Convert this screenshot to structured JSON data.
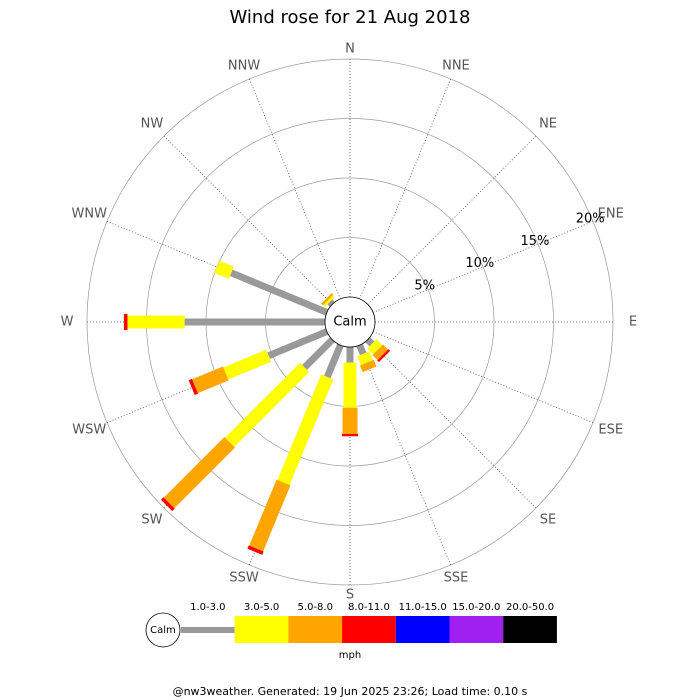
{
  "chart_data": {
    "type": "windrose",
    "title": "Wind rose for 21 Aug 2018",
    "directions": [
      "N",
      "NNE",
      "NE",
      "ENE",
      "E",
      "ESE",
      "SE",
      "SSE",
      "S",
      "SSW",
      "SW",
      "WSW",
      "W",
      "WNW",
      "NW",
      "NNW"
    ],
    "calm_label": "Calm",
    "rlim": [
      0,
      20
    ],
    "rticks": [
      {
        "value": 5,
        "label": "5%"
      },
      {
        "value": 10,
        "label": "10%"
      },
      {
        "value": 15,
        "label": "15%"
      },
      {
        "value": 20,
        "label": "20%"
      }
    ],
    "grid": true,
    "unit": "mph",
    "series": [
      {
        "name": "1.0-3.0",
        "color": "#999999",
        "values": [
          0,
          0,
          0,
          0,
          0,
          0,
          0.5,
          0.8,
          1.3,
          2.9,
          3.3,
          5.3,
          11.8,
          8.7,
          0.3,
          0
        ]
      },
      {
        "name": "3.0-5.0",
        "color": "#ffff00",
        "values": [
          0,
          0,
          0,
          0,
          0,
          0,
          0.7,
          0.8,
          3.8,
          9.6,
          8.9,
          3.9,
          4.8,
          1.3,
          0.2,
          0
        ]
      },
      {
        "name": "5.0-8.0",
        "color": "#ffa500",
        "values": [
          0,
          0,
          0,
          0,
          0,
          0,
          0.6,
          0.6,
          2.2,
          6.0,
          7.2,
          2.8,
          0,
          0,
          0.2,
          0
        ]
      },
      {
        "name": "8.0-11.0",
        "color": "#ff0000",
        "values": [
          0,
          0,
          0,
          0,
          0,
          0,
          0.2,
          0,
          0.2,
          0.3,
          0.3,
          0.3,
          0.3,
          0,
          0,
          0
        ]
      },
      {
        "name": "11.0-15.0",
        "color": "#0000ff",
        "values": [
          0,
          0,
          0,
          0,
          0,
          0,
          0,
          0,
          0,
          0,
          0,
          0,
          0,
          0,
          0,
          0
        ]
      },
      {
        "name": "15.0-20.0",
        "color": "#a020f0",
        "values": [
          0,
          0,
          0,
          0,
          0,
          0,
          0,
          0,
          0,
          0,
          0,
          0,
          0,
          0,
          0,
          0
        ]
      },
      {
        "name": "20.0-50.0",
        "color": "#000000",
        "values": [
          0,
          0,
          0,
          0,
          0,
          0,
          0,
          0,
          0,
          0,
          0,
          0,
          0,
          0,
          0,
          0
        ]
      }
    ]
  },
  "footer": "@nw3weather. Generated: 19 Jun 2025 23:26; Load time: 0.10 s"
}
